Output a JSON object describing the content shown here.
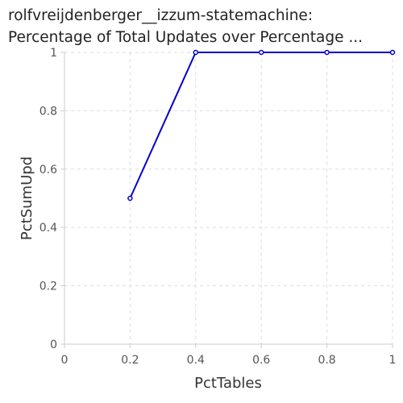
{
  "chart_data": {
    "type": "line",
    "title_lines": [
      "rolfvreijdenberger__izzum-statemachine:",
      "Percentage of Total Updates over Percentage ..."
    ],
    "xlabel": "PctTables",
    "ylabel": "PctSumUpd",
    "xlim": [
      0,
      1
    ],
    "ylim": [
      0,
      1
    ],
    "x_ticks": [
      "0",
      "0.2",
      "0.4",
      "0.6",
      "0.8",
      "1"
    ],
    "y_ticks": [
      "0",
      "0.2",
      "0.4",
      "0.6",
      "0.8",
      "1"
    ],
    "grid": true,
    "line_color": "#0000cc",
    "series": [
      {
        "x": [
          0.2,
          0.4,
          0.6,
          0.8,
          1.0
        ],
        "y": [
          0.5,
          1.0,
          1.0,
          1.0,
          1.0
        ]
      }
    ]
  }
}
